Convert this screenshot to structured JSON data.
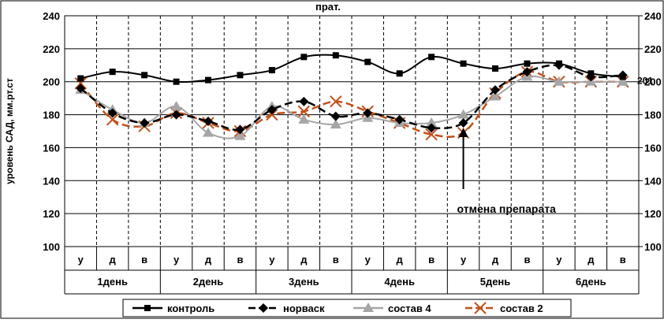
{
  "chart_data": {
    "type": "line",
    "title": "",
    "xlabel": "",
    "ylabel": "уровень САД, мм.рт.ст",
    "ylim": [
      100,
      240
    ],
    "y_ticks": [
      100,
      120,
      140,
      160,
      180,
      200,
      220,
      240
    ],
    "secondary_axis": "right",
    "grid": true,
    "categories": [
      "у",
      "д",
      "в",
      "у",
      "д",
      "в",
      "у",
      "д",
      "в",
      "у",
      "д",
      "в",
      "у",
      "д",
      "в",
      "у",
      "д",
      "в"
    ],
    "groups": [
      "1день",
      "2день",
      "3день",
      "4день",
      "5день",
      "6день"
    ],
    "series": [
      {
        "name": "контроль",
        "color": "#000000",
        "marker": "square",
        "dash": "solid",
        "values": [
          202,
          206,
          204,
          200,
          201,
          204,
          207,
          215,
          216,
          212,
          205,
          215,
          211,
          208,
          211,
          211,
          205,
          203
        ]
      },
      {
        "name": "норваск",
        "color": "#000000",
        "marker": "diamond",
        "dash": "dashed",
        "values": [
          196,
          181,
          175,
          180,
          176,
          171,
          183,
          188,
          179,
          181,
          177,
          172,
          175,
          195,
          206,
          210,
          203,
          204
        ]
      },
      {
        "name": "состав 4",
        "color": "#a6a6a6",
        "marker": "triangle",
        "dash": "solid",
        "values": [
          195,
          183,
          175,
          185,
          169,
          167,
          185,
          177,
          174,
          178,
          175,
          175,
          180,
          191,
          203,
          200,
          200,
          200
        ]
      },
      {
        "name": "состав 2",
        "color": "#c0501a",
        "marker": "x",
        "dash": "dashed",
        "values": [
          199,
          177,
          173,
          181,
          175,
          170,
          180,
          182,
          188,
          182,
          175,
          168,
          169,
          193,
          206,
          200,
          200,
          200
        ]
      }
    ],
    "annotations": [
      {
        "text": "отмена препарата",
        "category_index": 12
      },
      {
        "text": "201",
        "value_label_for": "контроль"
      },
      {
        "text": "прат."
      }
    ],
    "legend": "bottom"
  }
}
